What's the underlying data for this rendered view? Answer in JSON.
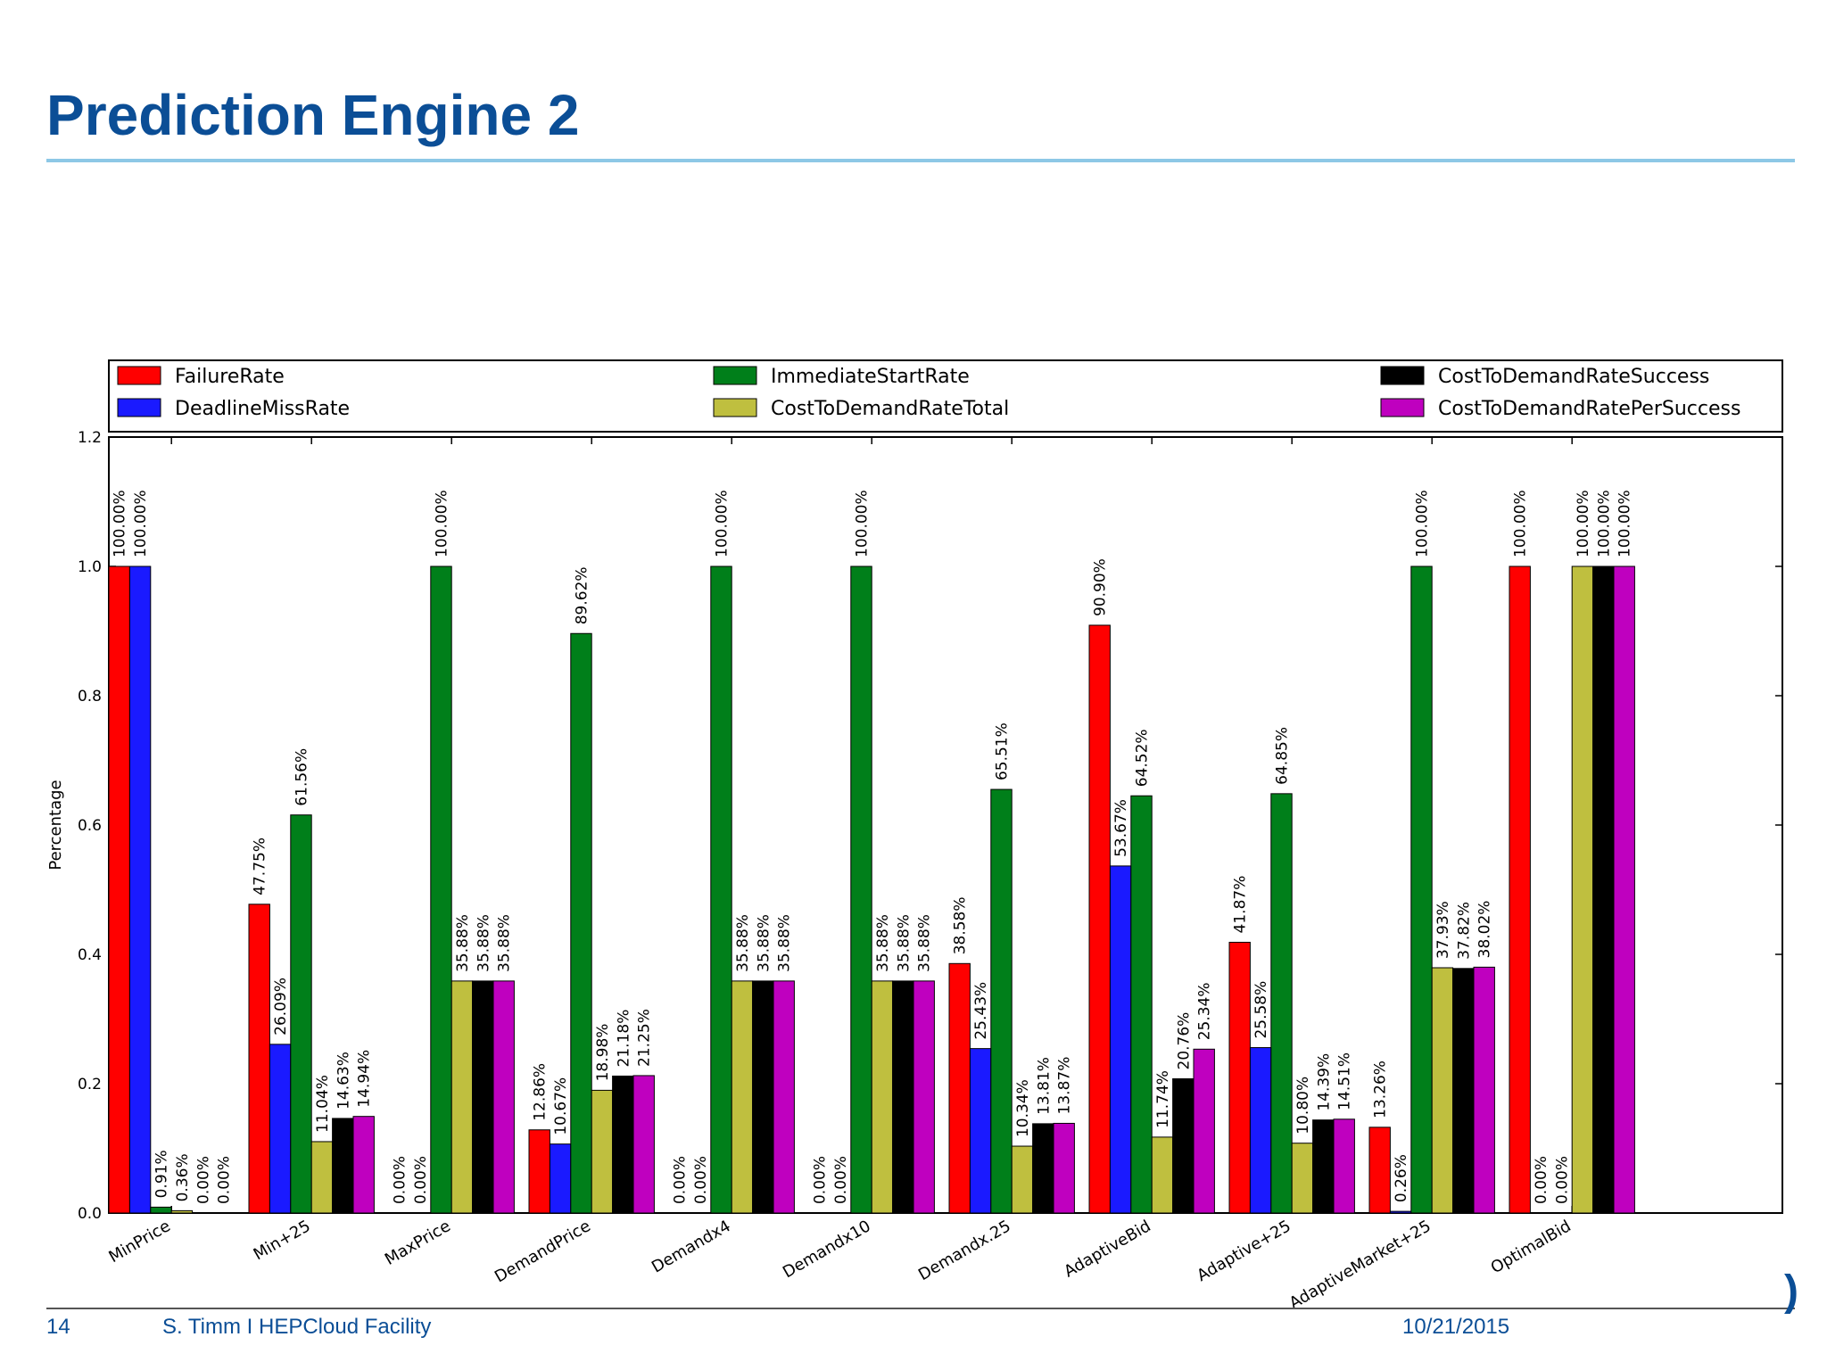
{
  "slide": {
    "title": "Prediction Engine 2",
    "footer": {
      "page_number": "14",
      "author": "S. Timm I HEPCloud Facility",
      "date": "10/21/2015"
    },
    "logo_fragment": ")",
    "accent_color": "#0b4e96"
  },
  "chart_data": {
    "type": "bar",
    "title": "",
    "xlabel": "",
    "ylabel": "Percentage",
    "ylim": [
      0,
      1.2
    ],
    "yticks": [
      "0.0",
      "0.2",
      "0.4",
      "0.6",
      "0.8",
      "1.0",
      "1.2"
    ],
    "grid": false,
    "legend_position": "top",
    "categories": [
      "MinPrice",
      "Min+25",
      "MaxPrice",
      "DemandPrice",
      "Demandx4",
      "Demandx10",
      "Demandx.25",
      "AdaptiveBid",
      "Adaptive+25",
      "AdaptiveMarket+25",
      "OptimalBid"
    ],
    "series": [
      {
        "name": "FailureRate",
        "color": "#ff0000",
        "values": [
          1.0,
          0.4775,
          0.0,
          0.1286,
          0.0,
          0.0,
          0.3858,
          0.909,
          0.4187,
          0.1326,
          1.0
        ],
        "labels": [
          "100.00%",
          "47.75%",
          "0.00%",
          "12.86%",
          "0.00%",
          "0.00%",
          "38.58%",
          "90.90%",
          "41.87%",
          "13.26%",
          "100.00%"
        ]
      },
      {
        "name": "DeadlineMissRate",
        "color": "#1a1aff",
        "values": [
          1.0,
          0.2609,
          0.0,
          0.1067,
          0.0,
          0.0,
          0.2543,
          0.5367,
          0.2558,
          0.0026,
          0.0
        ],
        "labels": [
          "100.00%",
          "26.09%",
          "0.00%",
          "10.67%",
          "0.00%",
          "0.00%",
          "25.43%",
          "53.67%",
          "25.58%",
          "0.26%",
          "0.00%"
        ]
      },
      {
        "name": "ImmediateStartRate",
        "color": "#007f1a",
        "values": [
          0.0091,
          0.6156,
          1.0,
          0.8962,
          1.0,
          1.0,
          0.6551,
          0.6452,
          0.6485,
          1.0,
          0.0
        ],
        "labels": [
          "0.91%",
          "61.56%",
          "100.00%",
          "89.62%",
          "100.00%",
          "100.00%",
          "65.51%",
          "64.52%",
          "64.85%",
          "100.00%",
          "0.00%"
        ]
      },
      {
        "name": "CostToDemandRateTotal",
        "color": "#bfbf3f",
        "values": [
          0.0036,
          0.1104,
          0.3588,
          0.1898,
          0.3588,
          0.3588,
          0.1034,
          0.1174,
          0.108,
          0.3793,
          1.0
        ],
        "labels": [
          "0.36%",
          "11.04%",
          "35.88%",
          "18.98%",
          "35.88%",
          "35.88%",
          "10.34%",
          "11.74%",
          "10.80%",
          "37.93%",
          "100.00%"
        ]
      },
      {
        "name": "CostToDemandRateSuccess",
        "color": "#000000",
        "values": [
          0.0,
          0.1463,
          0.3588,
          0.2118,
          0.3588,
          0.3588,
          0.1381,
          0.2076,
          0.1439,
          0.3782,
          1.0
        ],
        "labels": [
          "0.00%",
          "14.63%",
          "35.88%",
          "21.18%",
          "35.88%",
          "35.88%",
          "13.81%",
          "20.76%",
          "14.39%",
          "37.82%",
          "100.00%"
        ]
      },
      {
        "name": "CostToDemandRatePerSuccess",
        "color": "#bf00bf",
        "values": [
          0.0,
          0.1494,
          0.3588,
          0.2125,
          0.3588,
          0.3588,
          0.1387,
          0.2534,
          0.1451,
          0.3802,
          1.0
        ],
        "labels": [
          "0.00%",
          "14.94%",
          "35.88%",
          "21.25%",
          "35.88%",
          "35.88%",
          "13.87%",
          "25.34%",
          "14.51%",
          "38.02%",
          "100.00%"
        ]
      }
    ]
  }
}
